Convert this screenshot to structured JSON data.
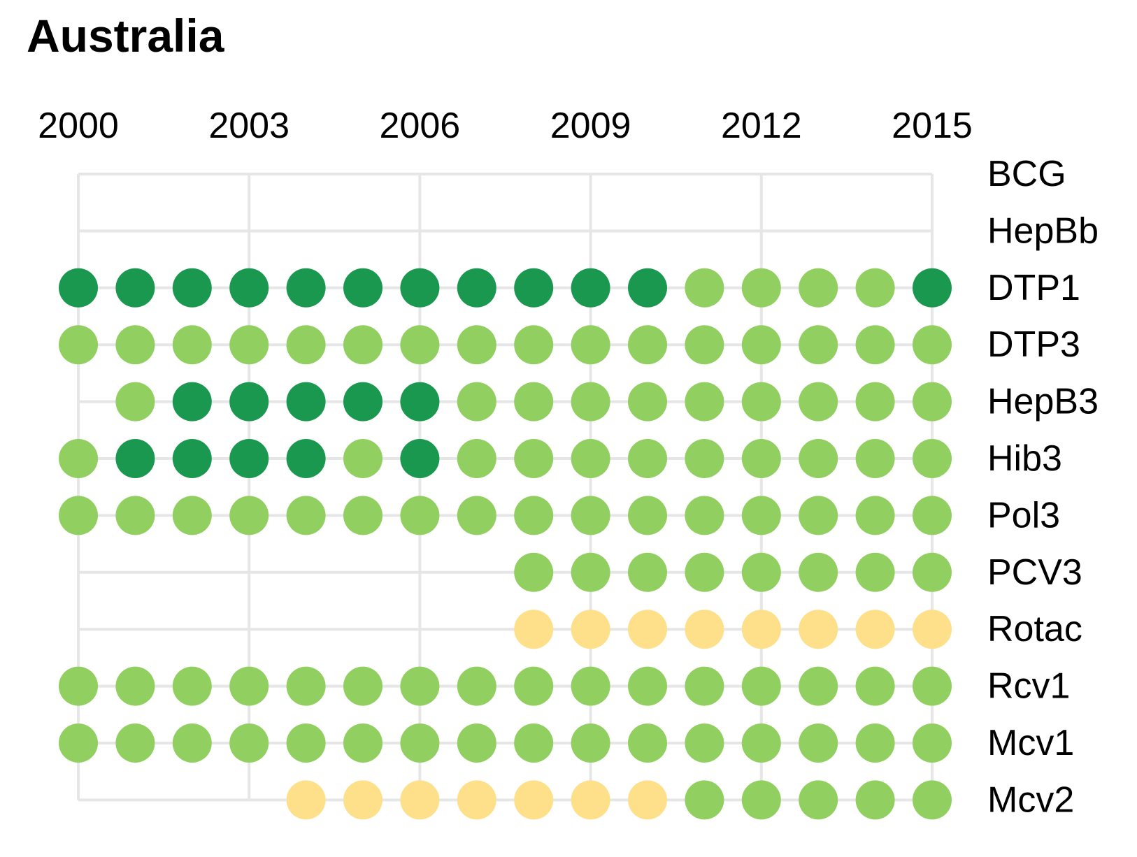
{
  "chart_data": {
    "type": "dot-matrix",
    "title": "Australia",
    "xlabel": "",
    "ylabel": "",
    "x": [
      2000,
      2001,
      2002,
      2003,
      2004,
      2005,
      2006,
      2007,
      2008,
      2009,
      2010,
      2011,
      2012,
      2013,
      2014,
      2015
    ],
    "x_ticks": [
      "2000",
      "2003",
      "2006",
      "2009",
      "2012",
      "2015"
    ],
    "grid": true,
    "colors": {
      "dark_green": "#1a9850",
      "light_green": "#91cf60",
      "yellow": "#fee08b",
      "grid": "#e6e6e6"
    },
    "rows": [
      {
        "name": "BCG",
        "values": [
          null,
          null,
          null,
          null,
          null,
          null,
          null,
          null,
          null,
          null,
          null,
          null,
          null,
          null,
          null,
          null
        ]
      },
      {
        "name": "HepBb",
        "values": [
          null,
          null,
          null,
          null,
          null,
          null,
          null,
          null,
          null,
          null,
          null,
          null,
          null,
          null,
          null,
          null
        ]
      },
      {
        "name": "DTP1",
        "values": [
          "dark_green",
          "dark_green",
          "dark_green",
          "dark_green",
          "dark_green",
          "dark_green",
          "dark_green",
          "dark_green",
          "dark_green",
          "dark_green",
          "dark_green",
          "light_green",
          "light_green",
          "light_green",
          "light_green",
          "dark_green"
        ]
      },
      {
        "name": "DTP3",
        "values": [
          "light_green",
          "light_green",
          "light_green",
          "light_green",
          "light_green",
          "light_green",
          "light_green",
          "light_green",
          "light_green",
          "light_green",
          "light_green",
          "light_green",
          "light_green",
          "light_green",
          "light_green",
          "light_green"
        ]
      },
      {
        "name": "HepB3",
        "values": [
          null,
          "light_green",
          "dark_green",
          "dark_green",
          "dark_green",
          "dark_green",
          "dark_green",
          "light_green",
          "light_green",
          "light_green",
          "light_green",
          "light_green",
          "light_green",
          "light_green",
          "light_green",
          "light_green"
        ]
      },
      {
        "name": "Hib3",
        "values": [
          "light_green",
          "dark_green",
          "dark_green",
          "dark_green",
          "dark_green",
          "light_green",
          "dark_green",
          "light_green",
          "light_green",
          "light_green",
          "light_green",
          "light_green",
          "light_green",
          "light_green",
          "light_green",
          "light_green"
        ]
      },
      {
        "name": "Pol3",
        "values": [
          "light_green",
          "light_green",
          "light_green",
          "light_green",
          "light_green",
          "light_green",
          "light_green",
          "light_green",
          "light_green",
          "light_green",
          "light_green",
          "light_green",
          "light_green",
          "light_green",
          "light_green",
          "light_green"
        ]
      },
      {
        "name": "PCV3",
        "values": [
          null,
          null,
          null,
          null,
          null,
          null,
          null,
          null,
          "light_green",
          "light_green",
          "light_green",
          "light_green",
          "light_green",
          "light_green",
          "light_green",
          "light_green"
        ]
      },
      {
        "name": "Rotac",
        "values": [
          null,
          null,
          null,
          null,
          null,
          null,
          null,
          null,
          "yellow",
          "yellow",
          "yellow",
          "yellow",
          "yellow",
          "yellow",
          "yellow",
          "yellow"
        ]
      },
      {
        "name": "Rcv1",
        "values": [
          "light_green",
          "light_green",
          "light_green",
          "light_green",
          "light_green",
          "light_green",
          "light_green",
          "light_green",
          "light_green",
          "light_green",
          "light_green",
          "light_green",
          "light_green",
          "light_green",
          "light_green",
          "light_green"
        ]
      },
      {
        "name": "Mcv1",
        "values": [
          "light_green",
          "light_green",
          "light_green",
          "light_green",
          "light_green",
          "light_green",
          "light_green",
          "light_green",
          "light_green",
          "light_green",
          "light_green",
          "light_green",
          "light_green",
          "light_green",
          "light_green",
          "light_green"
        ]
      },
      {
        "name": "Mcv2",
        "values": [
          null,
          null,
          null,
          null,
          "yellow",
          "yellow",
          "yellow",
          "yellow",
          "yellow",
          "yellow",
          "yellow",
          "light_green",
          "light_green",
          "light_green",
          "light_green",
          "light_green"
        ]
      }
    ]
  }
}
